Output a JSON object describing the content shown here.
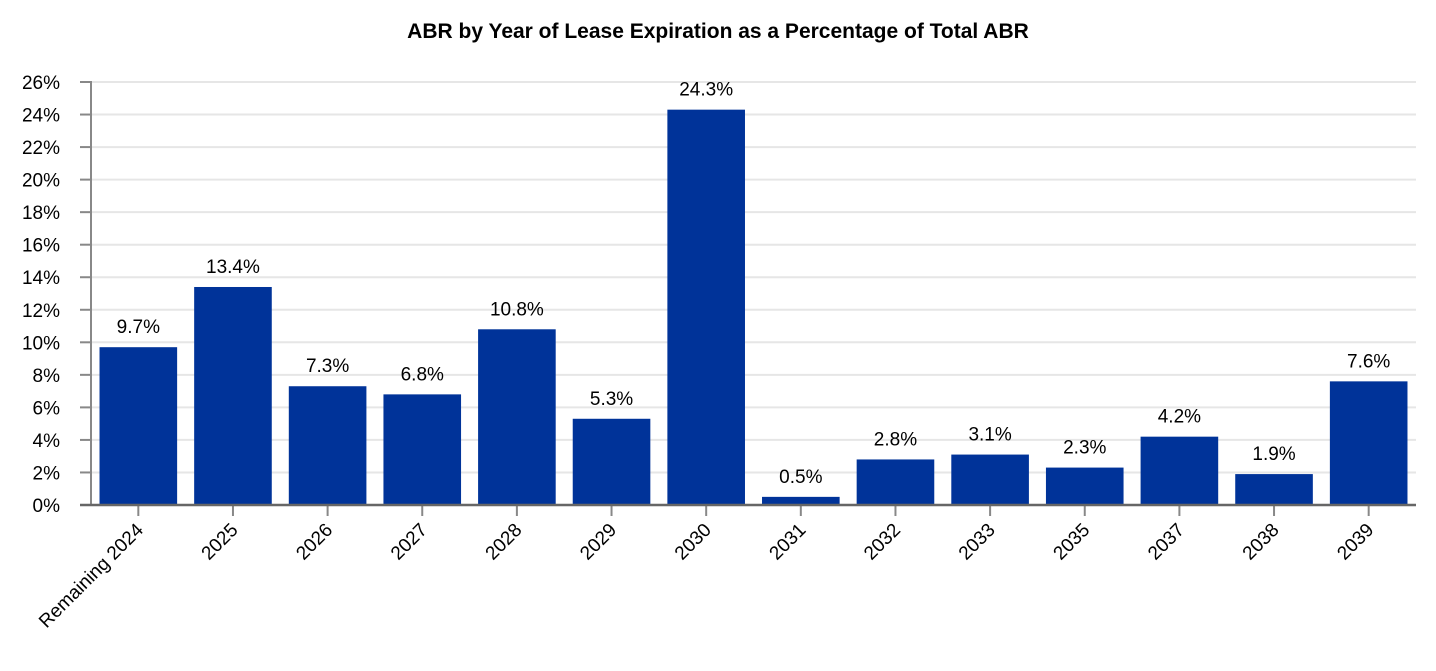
{
  "chart_data": {
    "type": "bar",
    "title": "ABR by Year of Lease Expiration as a Percentage of Total ABR",
    "xlabel": "",
    "ylabel": "",
    "categories": [
      "Remaining 2024",
      "2025",
      "2026",
      "2027",
      "2028",
      "2029",
      "2030",
      "2031",
      "2032",
      "2033",
      "2035",
      "2037",
      "2038",
      "2039"
    ],
    "values": [
      9.7,
      13.4,
      7.3,
      6.8,
      10.8,
      5.3,
      24.3,
      0.5,
      2.8,
      3.1,
      2.3,
      4.2,
      1.9,
      7.6
    ],
    "data_labels": [
      "9.7%",
      "13.4%",
      "7.3%",
      "6.8%",
      "10.8%",
      "5.3%",
      "24.3%",
      "0.5%",
      "2.8%",
      "3.1%",
      "2.3%",
      "4.2%",
      "1.9%",
      "7.6%"
    ],
    "ylim": [
      0,
      26
    ],
    "yticks": [
      0,
      2,
      4,
      6,
      8,
      10,
      12,
      14,
      16,
      18,
      20,
      22,
      24,
      26
    ],
    "ytick_labels": [
      "0%",
      "2%",
      "4%",
      "6%",
      "8%",
      "10%",
      "12%",
      "14%",
      "16%",
      "18%",
      "20%",
      "22%",
      "24%",
      "26%"
    ],
    "grid": true,
    "legend": "none",
    "bar_color": "#003399"
  }
}
